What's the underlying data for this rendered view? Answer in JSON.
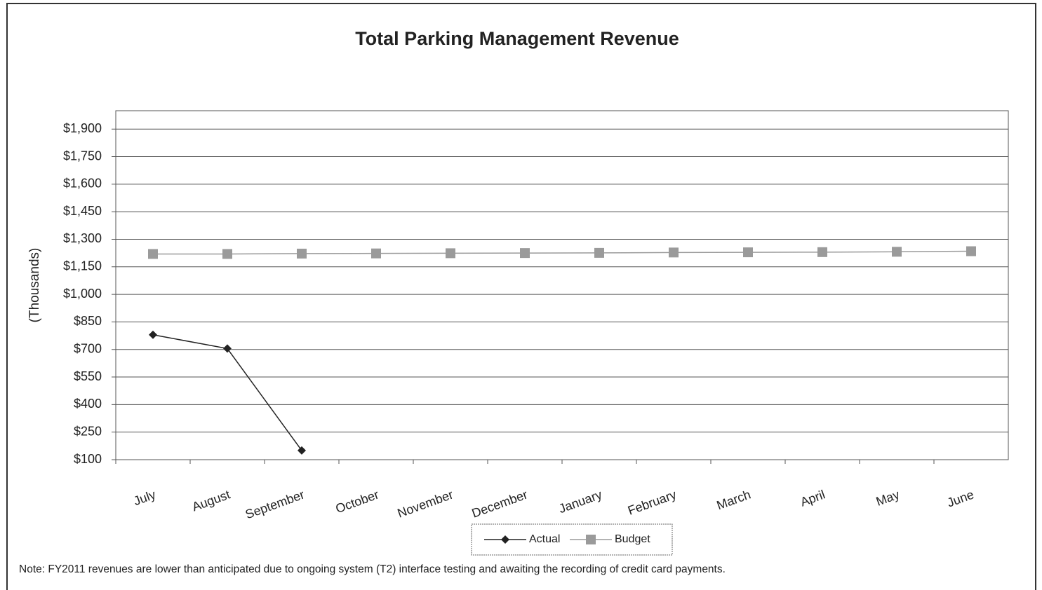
{
  "chart_data": {
    "type": "line",
    "title": "Total Parking Management Revenue",
    "ylabel": "(Thousands)",
    "note": "Note:  FY2011 revenues are lower than anticipated due to ongoing  system (T2) interface testing and awaiting the recording of credit card payments.",
    "categories": [
      "July",
      "August",
      "September",
      "October",
      "November",
      "December",
      "January",
      "February",
      "March",
      "April",
      "May",
      "June"
    ],
    "series": [
      {
        "name": "Actual",
        "color": "#222222",
        "marker": "diamond",
        "values": [
          780,
          705,
          150,
          null,
          null,
          null,
          null,
          null,
          null,
          null,
          null,
          null
        ]
      },
      {
        "name": "Budget",
        "color": "#9a9a9a",
        "marker": "square",
        "values": [
          1220,
          1220,
          1222,
          1223,
          1224,
          1225,
          1226,
          1228,
          1229,
          1230,
          1232,
          1235
        ]
      }
    ],
    "ylim": [
      100,
      2000
    ],
    "yticks": [
      {
        "value": 100,
        "label": "$100"
      },
      {
        "value": 250,
        "label": "$250"
      },
      {
        "value": 400,
        "label": "$400"
      },
      {
        "value": 550,
        "label": "$550"
      },
      {
        "value": 700,
        "label": "$700"
      },
      {
        "value": 850,
        "label": "$850"
      },
      {
        "value": 1000,
        "label": "$1,000"
      },
      {
        "value": 1150,
        "label": "$1,150"
      },
      {
        "value": 1300,
        "label": "$1,300"
      },
      {
        "value": 1450,
        "label": "$1,450"
      },
      {
        "value": 1600,
        "label": "$1,600"
      },
      {
        "value": 1750,
        "label": "$1,750"
      },
      {
        "value": 1900,
        "label": "$1,900"
      }
    ],
    "grid": true
  }
}
